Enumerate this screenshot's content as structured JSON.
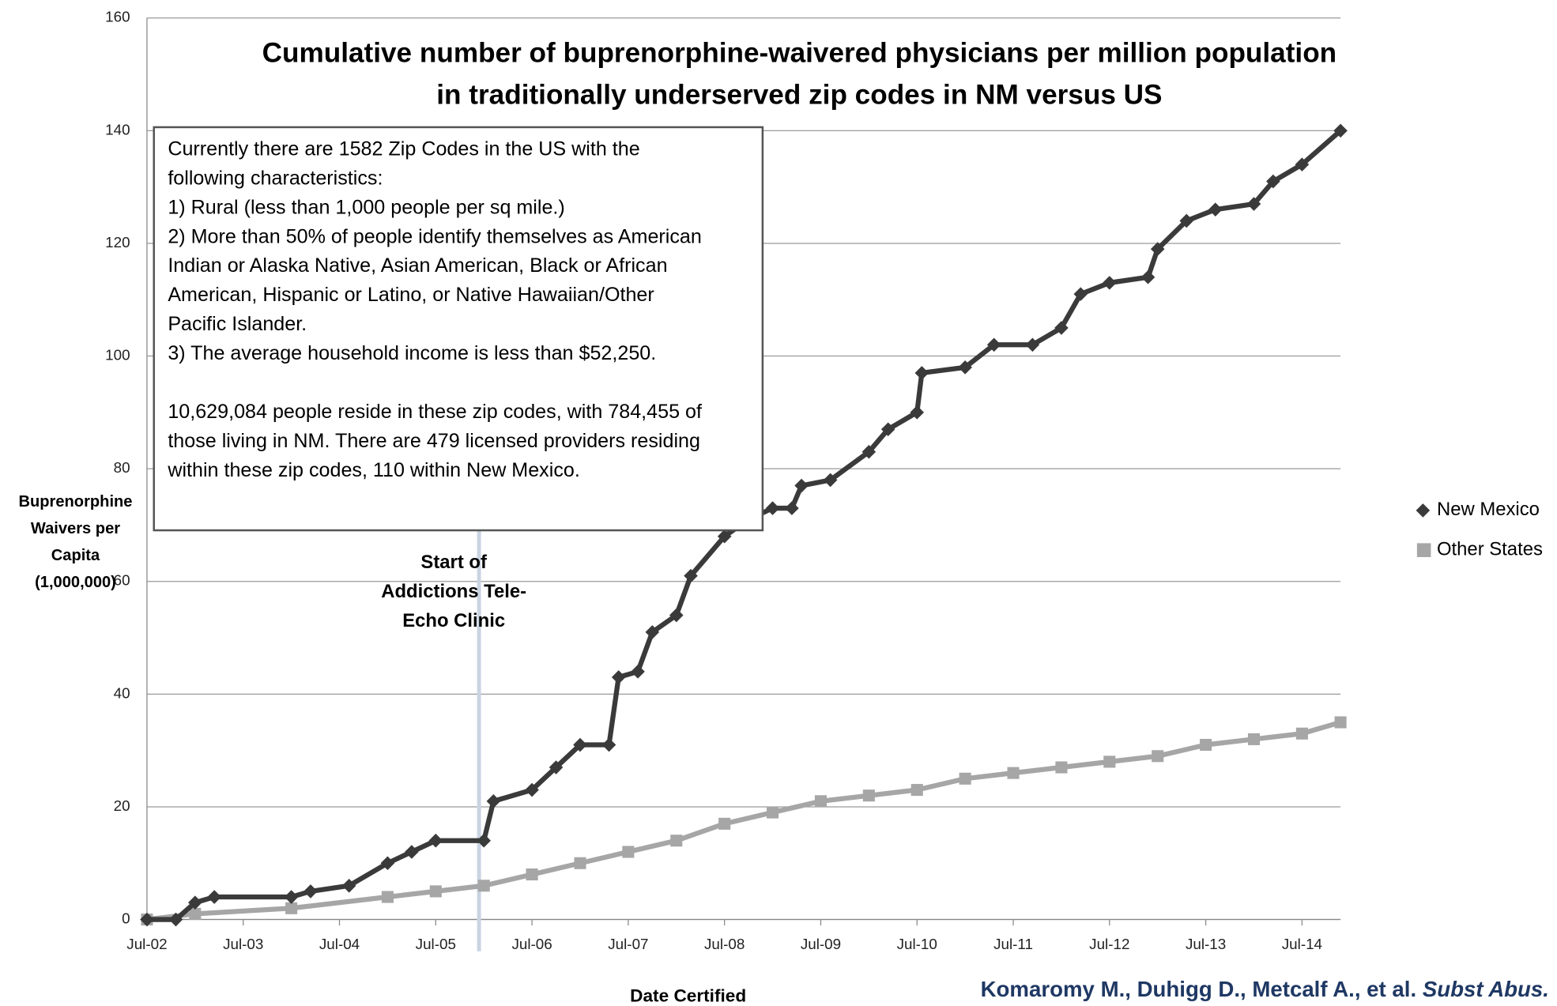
{
  "chart_data": {
    "type": "line",
    "title": [
      "Cumulative number of buprenorphine-waivered physicians per million population",
      "in traditionally underserved zip codes in NM versus US"
    ],
    "ylabel": [
      "Buprenorphine",
      "Waivers per",
      "Capita",
      "(1,000,000)"
    ],
    "xlabel": "Date Certified",
    "ylim": [
      0,
      160
    ],
    "yticks": [
      0,
      20,
      40,
      60,
      80,
      100,
      120,
      140,
      160
    ],
    "xlim": [
      2002.5,
      2014.9
    ],
    "xticks": [
      {
        "value": 2002.5,
        "label": "Jul-02"
      },
      {
        "value": 2003.5,
        "label": "Jul-03"
      },
      {
        "value": 2004.5,
        "label": "Jul-04"
      },
      {
        "value": 2005.5,
        "label": "Jul-05"
      },
      {
        "value": 2006.5,
        "label": "Jul-06"
      },
      {
        "value": 2007.5,
        "label": "Jul-07"
      },
      {
        "value": 2008.5,
        "label": "Jul-08"
      },
      {
        "value": 2009.5,
        "label": "Jul-09"
      },
      {
        "value": 2010.5,
        "label": "Jul-10"
      },
      {
        "value": 2011.5,
        "label": "Jul-11"
      },
      {
        "value": 2012.5,
        "label": "Jul-12"
      },
      {
        "value": 2013.5,
        "label": "Jul-13"
      },
      {
        "value": 2014.5,
        "label": "Jul-14"
      }
    ],
    "grid": true,
    "legend": "right",
    "series": [
      {
        "name": "New Mexico",
        "color": "#3a3a3a",
        "marker": "diamond",
        "x": [
          2002.5,
          2002.8,
          2003.0,
          2003.2,
          2004.0,
          2004.2,
          2004.6,
          2005.0,
          2005.25,
          2005.5,
          2006.0,
          2006.1,
          2006.5,
          2006.75,
          2007.0,
          2007.3,
          2007.4,
          2007.6,
          2007.75,
          2008.0,
          2008.15,
          2008.5,
          2008.75,
          2009.0,
          2009.2,
          2009.3,
          2009.6,
          2010.0,
          2010.2,
          2010.5,
          2010.55,
          2011.0,
          2011.3,
          2011.7,
          2012.0,
          2012.2,
          2012.5,
          2012.9,
          2013.0,
          2013.3,
          2013.6,
          2014.0,
          2014.2,
          2014.5,
          2014.9
        ],
        "values": [
          0,
          0,
          3,
          4,
          4,
          5,
          6,
          10,
          12,
          14,
          14,
          21,
          23,
          27,
          31,
          31,
          43,
          44,
          51,
          54,
          61,
          68,
          71,
          73,
          73,
          77,
          78,
          83,
          87,
          90,
          97,
          98,
          102,
          102,
          105,
          111,
          113,
          114,
          119,
          124,
          126,
          127,
          131,
          134,
          140
        ]
      },
      {
        "name": "Other States",
        "color": "#a6a6a6",
        "marker": "square",
        "x": [
          2002.5,
          2003.0,
          2004.0,
          2005.0,
          2005.5,
          2006.0,
          2006.5,
          2007.0,
          2007.5,
          2008.0,
          2008.5,
          2009.0,
          2009.5,
          2010.0,
          2010.5,
          2011.0,
          2011.5,
          2012.0,
          2012.5,
          2013.0,
          2013.5,
          2014.0,
          2014.5,
          2014.9
        ],
        "values": [
          0,
          1,
          2,
          4,
          5,
          6,
          8,
          10,
          12,
          14,
          17,
          19,
          21,
          22,
          23,
          25,
          26,
          27,
          28,
          29,
          31,
          32,
          33,
          35
        ]
      }
    ],
    "note": [
      [
        "Currently there are 1582 Zip Codes in the US with the",
        "following characteristics:",
        "1) Rural (less than 1,000 people per sq mile.)",
        "2) More than 50% of people identify themselves as American",
        "Indian or Alaska Native, Asian American, Black or African",
        "American, Hispanic or Latino, or Native Hawaiian/Other",
        "Pacific Islander.",
        "3) The average household income is less than $52,250."
      ],
      [
        "10,629,084 people reside in these zip codes, with 784,455 of",
        "those living in NM.  There are 479 licensed providers residing",
        "within these zip codes, 110 within New Mexico."
      ]
    ],
    "annotation": {
      "text": [
        "Start of",
        "Addictions  Tele-",
        "Echo Clinic"
      ],
      "x": 2005.95
    },
    "citation": {
      "authors": "Komaromy M., Duhigg D., Metcalf A., et al. ",
      "journal": "Subst Abus."
    }
  }
}
